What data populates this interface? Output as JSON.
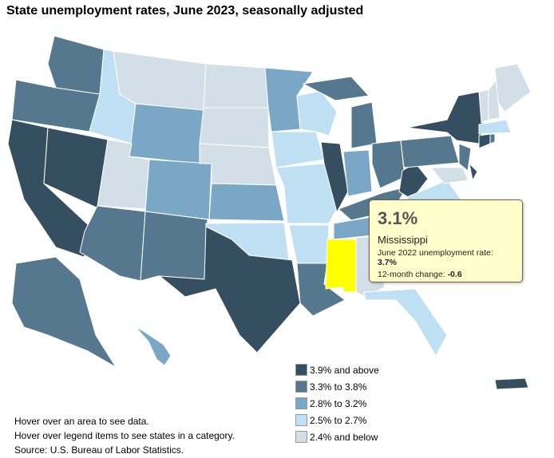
{
  "title": "State unemployment rates, June 2023, seasonally adjusted",
  "colors": {
    "c1": "#354f61",
    "c2": "#56788f",
    "c3": "#7ba7c6",
    "c4": "#bfe0f3",
    "c5": "#d3dfe7",
    "highlight": "#ffff00"
  },
  "tooltip": {
    "rate": "3.1%",
    "state": "Mississippi",
    "prev_label": "June 2022 unemployment rate: ",
    "prev_value": "3.7%",
    "change_label": "12-month change: ",
    "change_value": "-0.6"
  },
  "legend": [
    {
      "label": "3.9% and above",
      "color": "#354f61"
    },
    {
      "label": "3.3% to 3.8%",
      "color": "#56788f"
    },
    {
      "label": "2.8% to 3.2%",
      "color": "#7ba7c6"
    },
    {
      "label": "2.5% to 2.7%",
      "color": "#bfe0f3"
    },
    {
      "label": "2.4% and below",
      "color": "#d3dfe7"
    }
  ],
  "notes": [
    "Hover over an area to see data.",
    "Hover over legend items to see states in a category.",
    "Source: U.S. Bureau of Labor Statistics."
  ]
}
